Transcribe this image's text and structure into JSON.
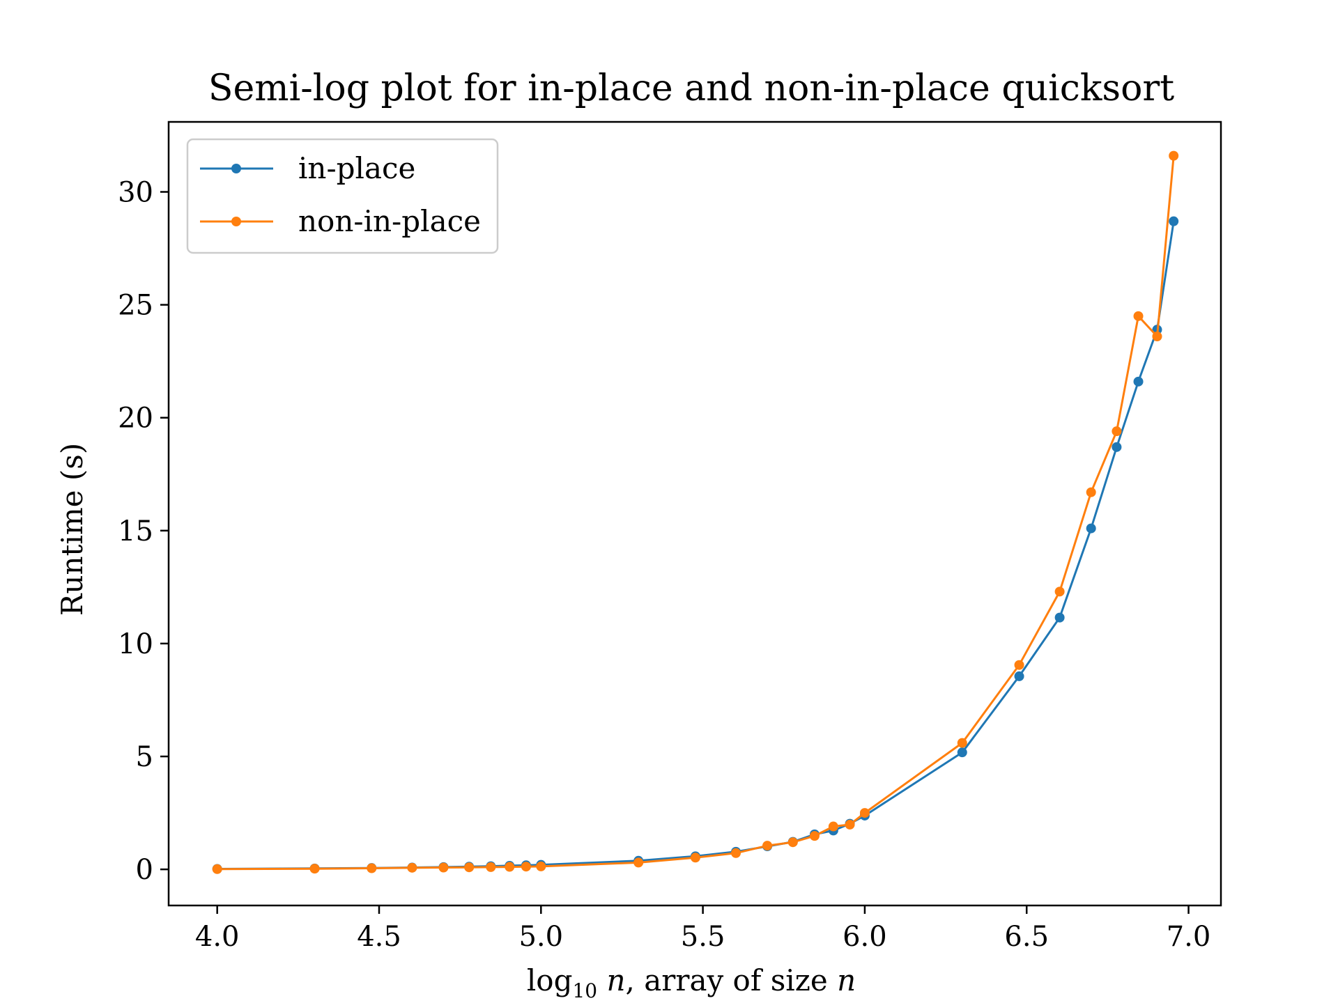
{
  "chart_data": {
    "type": "line",
    "title": "Semi-log plot for in-place and non-in-place quicksort",
    "xlabel": {
      "prefix": "log",
      "subscript": "10",
      "var": "n",
      "middle": ", array of size ",
      "var2": "n"
    },
    "ylabel": "Runtime (s)",
    "xlim": [
      3.85,
      7.1
    ],
    "ylim": [
      -1.6,
      33.1
    ],
    "xticks": [
      4.0,
      4.5,
      5.0,
      5.5,
      6.0,
      6.5,
      7.0
    ],
    "xtick_labels": [
      "4.0",
      "4.5",
      "5.0",
      "5.5",
      "6.0",
      "6.5",
      "7.0"
    ],
    "yticks": [
      0,
      5,
      10,
      15,
      20,
      25,
      30
    ],
    "ytick_labels": [
      "0",
      "5",
      "10",
      "15",
      "20",
      "25",
      "30"
    ],
    "grid": false,
    "legend_position": "top-left",
    "series": [
      {
        "name": "in-place",
        "color": "#1f77b4",
        "x": [
          4.0,
          4.301,
          4.477,
          4.602,
          4.699,
          4.778,
          4.845,
          4.903,
          4.954,
          5.0,
          5.301,
          5.477,
          5.602,
          5.699,
          5.778,
          5.845,
          5.903,
          5.954,
          6.0,
          6.301,
          6.477,
          6.602,
          6.699,
          6.778,
          6.845,
          6.903,
          6.954
        ],
        "y": [
          0.02,
          0.04,
          0.06,
          0.08,
          0.1,
          0.12,
          0.14,
          0.16,
          0.18,
          0.2,
          0.38,
          0.58,
          0.78,
          1.02,
          1.22,
          1.55,
          1.72,
          2.02,
          2.38,
          5.18,
          8.55,
          11.15,
          15.1,
          18.7,
          21.6,
          23.9,
          28.7
        ]
      },
      {
        "name": "non-in-place",
        "color": "#ff7f0e",
        "x": [
          4.0,
          4.301,
          4.477,
          4.602,
          4.699,
          4.778,
          4.845,
          4.903,
          4.954,
          5.0,
          5.301,
          5.477,
          5.602,
          5.699,
          5.778,
          5.845,
          5.903,
          5.954,
          6.0,
          6.301,
          6.477,
          6.602,
          6.699,
          6.778,
          6.845,
          6.903,
          6.954
        ],
        "y": [
          0.01,
          0.03,
          0.05,
          0.07,
          0.08,
          0.09,
          0.1,
          0.11,
          0.12,
          0.13,
          0.3,
          0.52,
          0.72,
          1.05,
          1.2,
          1.48,
          1.9,
          1.98,
          2.5,
          5.6,
          9.05,
          12.3,
          16.7,
          19.4,
          24.5,
          23.6,
          31.6
        ]
      }
    ]
  }
}
